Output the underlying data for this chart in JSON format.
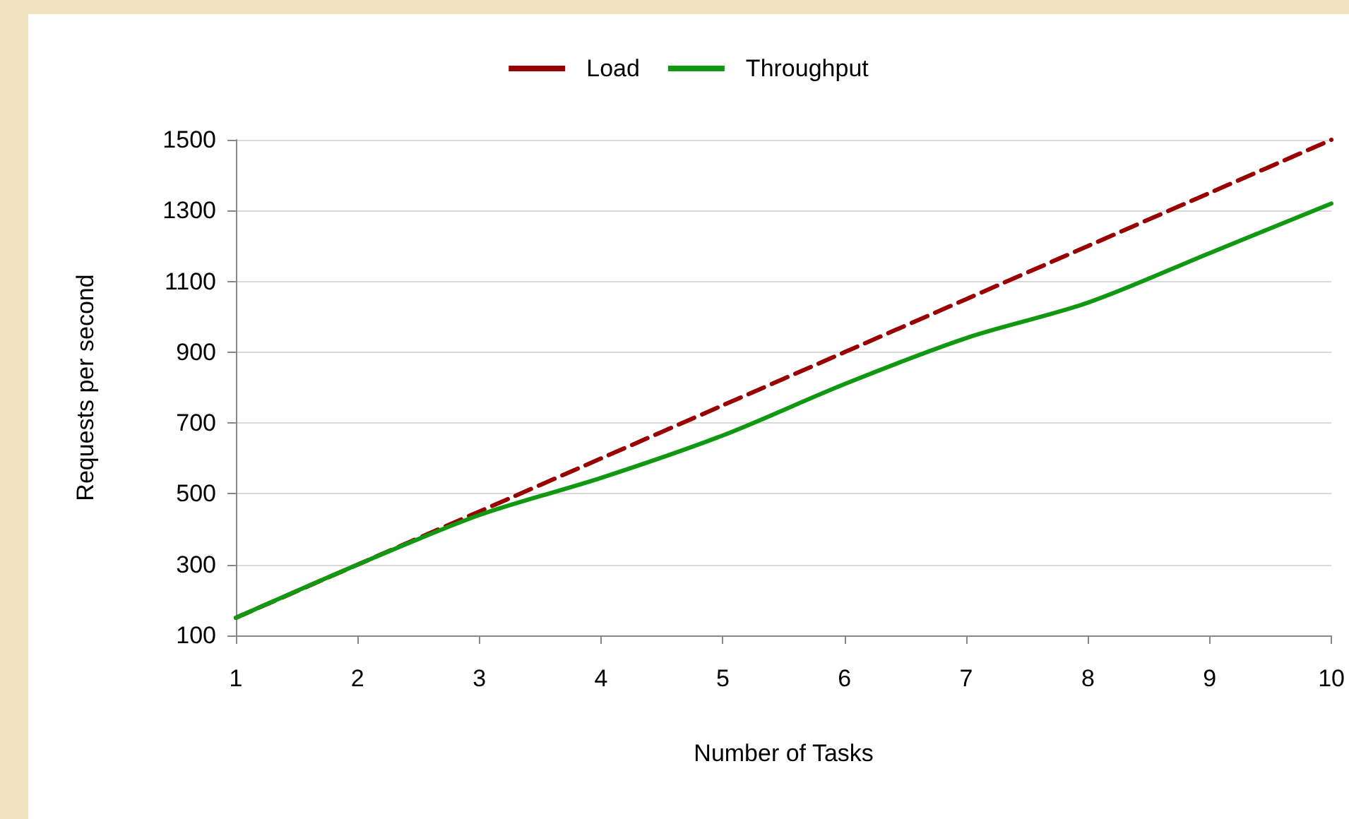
{
  "chart_data": {
    "type": "line",
    "xlabel": "Number of Tasks",
    "ylabel": "Requests per second",
    "x": [
      1,
      2,
      3,
      4,
      5,
      6,
      7,
      8,
      9,
      10
    ],
    "series": [
      {
        "name": "Load",
        "color": "#990000",
        "line_style": "dashed",
        "values": [
          150,
          300,
          450,
          600,
          750,
          900,
          1050,
          1200,
          1350,
          1500
        ]
      },
      {
        "name": "Throughput",
        "color": "#109910",
        "line_style": "solid",
        "values": [
          150,
          300,
          440,
          545,
          665,
          810,
          940,
          1040,
          1180,
          1320
        ]
      }
    ],
    "xlim": [
      1,
      10
    ],
    "xticks": [
      1,
      2,
      3,
      4,
      5,
      6,
      7,
      8,
      9,
      10
    ],
    "ylim": [
      100,
      1500
    ],
    "yticks": [
      100,
      300,
      500,
      700,
      900,
      1100,
      1300,
      1500
    ],
    "grid": "y",
    "legend": "top",
    "marker": "none"
  }
}
